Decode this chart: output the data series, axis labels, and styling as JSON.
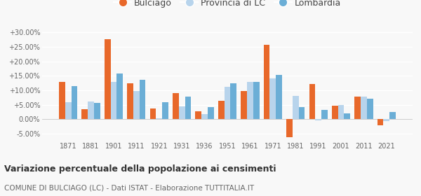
{
  "years": [
    1871,
    1881,
    1901,
    1911,
    1921,
    1931,
    1936,
    1951,
    1961,
    1971,
    1981,
    1991,
    2001,
    2011,
    2021
  ],
  "bulciago": [
    13.0,
    3.5,
    27.5,
    12.5,
    3.8,
    9.0,
    2.8,
    6.5,
    9.8,
    25.6,
    -6.2,
    12.2,
    4.7,
    7.9,
    -2.0
  ],
  "provincia_lc": [
    5.8,
    6.2,
    12.8,
    9.8,
    0.4,
    4.5,
    1.8,
    11.3,
    12.9,
    14.0,
    8.0,
    -0.4,
    5.0,
    7.8,
    -0.7
  ],
  "lombardia": [
    11.5,
    5.7,
    15.8,
    13.5,
    6.0,
    7.9,
    4.3,
    12.5,
    13.0,
    15.3,
    4.2,
    3.2,
    2.0,
    7.2,
    2.5
  ],
  "color_bulciago": "#e8682a",
  "color_provincia": "#b8d4ec",
  "color_lombardia": "#6baed6",
  "title1": "Variazione percentuale della popolazione ai censimenti",
  "title2": "COMUNE DI BULCIAGO (LC) - Dati ISTAT - Elaborazione TUTTITALIA.IT",
  "legend_labels": [
    "Bulciago",
    "Provincia di LC",
    "Lombardia"
  ],
  "ylim": [
    -7.5,
    33
  ],
  "yticks": [
    -5,
    0,
    5,
    10,
    15,
    20,
    25,
    30
  ],
  "bar_width": 0.27,
  "bg_color": "#f8f8f8"
}
